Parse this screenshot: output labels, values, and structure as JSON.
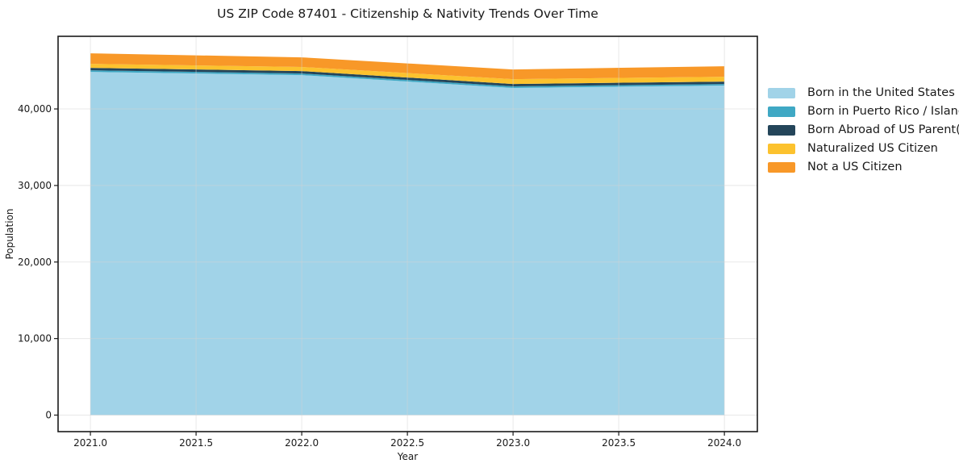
{
  "title": "US ZIP Code 87401 - Citizenship & Nativity Trends Over Time",
  "colors": {
    "grid": "#d3d3d3",
    "spine": "#1a1a1a",
    "tick": "#1a1a1a",
    "text": "#1a1a1a"
  },
  "chart_data": {
    "type": "area",
    "stacked": true,
    "title": "US ZIP Code 87401 - Citizenship & Nativity Trends Over Time",
    "xlabel": "Year",
    "ylabel": "Population",
    "x": [
      2021,
      2022,
      2023,
      2024
    ],
    "series": [
      {
        "name": "Born in the United States",
        "color": "#a1d3e8",
        "values": [
          44840,
          44425,
          42740,
          43055
        ]
      },
      {
        "name": "Born in Puerto Rico / Islands",
        "color": "#3fa8c4",
        "values": [
          210,
          210,
          210,
          210
        ]
      },
      {
        "name": "Born Abroad of US Parent(s)",
        "color": "#24455a",
        "values": [
          315,
          315,
          315,
          315
        ]
      },
      {
        "name": "Naturalized US Citizen",
        "color": "#fcc22e",
        "values": [
          530,
          530,
          630,
          630
        ]
      },
      {
        "name": "Not a US Citizen",
        "color": "#f89828",
        "values": [
          1370,
          1260,
          1265,
          1370
        ]
      }
    ],
    "totals": [
      47265,
      46740,
      45160,
      45580
    ],
    "x_ticks": [
      2021.0,
      2021.5,
      2022.0,
      2022.5,
      2023.0,
      2023.5,
      2024.0
    ],
    "x_tick_labels": [
      "2021.0",
      "2021.5",
      "2022.0",
      "2022.5",
      "2023.0",
      "2023.5",
      "2024.0"
    ],
    "y_ticks": [
      0,
      10000,
      20000,
      30000,
      40000
    ],
    "y_tick_labels": [
      "0",
      "10,000",
      "20,000",
      "30,000",
      "40,000"
    ],
    "xlim": [
      2020.847,
      2024.156
    ],
    "ylim": [
      -2160,
      49490
    ],
    "grid": true,
    "legend_position": "right"
  }
}
